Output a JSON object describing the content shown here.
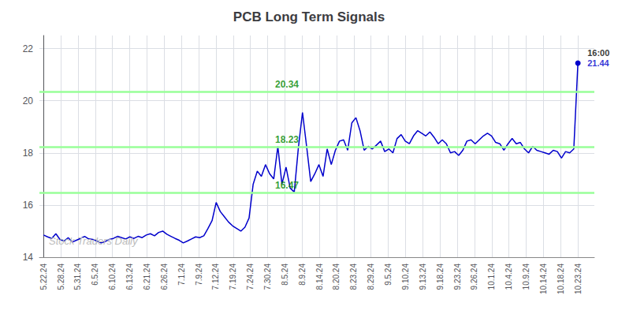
{
  "chart_data": {
    "type": "line",
    "title": "PCB Long Term Signals",
    "color": "#0000cc",
    "marker": "end",
    "grid": true,
    "values": [
      14.85,
      14.78,
      14.72,
      14.9,
      14.68,
      14.62,
      14.75,
      14.58,
      14.65,
      14.72,
      14.8,
      14.7,
      14.68,
      14.62,
      14.55,
      14.6,
      14.68,
      14.72,
      14.8,
      14.75,
      14.7,
      14.78,
      14.72,
      14.8,
      14.75,
      14.85,
      14.9,
      14.82,
      14.95,
      15.0,
      14.88,
      14.8,
      14.72,
      14.65,
      14.55,
      14.62,
      14.7,
      14.78,
      14.75,
      14.82,
      15.1,
      15.4,
      16.1,
      15.75,
      15.55,
      15.35,
      15.2,
      15.1,
      15.0,
      15.15,
      15.5,
      16.8,
      17.3,
      17.1,
      17.55,
      17.2,
      17.0,
      18.25,
      16.8,
      17.45,
      16.65,
      16.5,
      18.2,
      19.55,
      18.25,
      16.9,
      17.2,
      17.55,
      17.1,
      18.15,
      17.55,
      18.1,
      18.45,
      18.5,
      18.1,
      19.15,
      19.35,
      18.85,
      18.1,
      18.25,
      18.15,
      18.3,
      18.45,
      18.05,
      18.15,
      18.0,
      18.55,
      18.7,
      18.45,
      18.35,
      18.65,
      18.85,
      18.75,
      18.65,
      18.8,
      18.6,
      18.35,
      18.5,
      18.35,
      18.0,
      18.05,
      17.9,
      18.1,
      18.45,
      18.5,
      18.35,
      18.5,
      18.65,
      18.75,
      18.65,
      18.4,
      18.35,
      18.1,
      18.35,
      18.55,
      18.35,
      18.4,
      18.15,
      18.0,
      18.25,
      18.1,
      18.05,
      18.0,
      17.95,
      18.1,
      18.05,
      17.8,
      18.05,
      18.0,
      18.15,
      21.44
    ],
    "xlim": [
      -1,
      134
    ],
    "xticks": [
      {
        "value": 0,
        "label": "5.22.24"
      },
      {
        "value": 4.193548,
        "label": "5.28.24"
      },
      {
        "value": 8.387097,
        "label": "5.31.24"
      },
      {
        "value": 12.580645,
        "label": "6.5.24"
      },
      {
        "value": 16.774194,
        "label": "6.10.24"
      },
      {
        "value": 20.967742,
        "label": "6.13.24"
      },
      {
        "value": 25.16129,
        "label": "6.21.24"
      },
      {
        "value": 29.354839,
        "label": "6.26.24"
      },
      {
        "value": 33.548387,
        "label": "7.1.24"
      },
      {
        "value": 37.741935,
        "label": "7.9.24"
      },
      {
        "value": 41.935484,
        "label": "7.12.24"
      },
      {
        "value": 46.129032,
        "label": "7.19.24"
      },
      {
        "value": 50.322581,
        "label": "7.24.24"
      },
      {
        "value": 54.516129,
        "label": "7.30.24"
      },
      {
        "value": 58.709677,
        "label": "8.5.24"
      },
      {
        "value": 62.903226,
        "label": "8.9.24"
      },
      {
        "value": 67.096774,
        "label": "8.14.24"
      },
      {
        "value": 71.290323,
        "label": "8.20.24"
      },
      {
        "value": 75.483871,
        "label": "8.23.24"
      },
      {
        "value": 79.677419,
        "label": "8.29.24"
      },
      {
        "value": 83.870968,
        "label": "9.5.24"
      },
      {
        "value": 88.064516,
        "label": "9.10.24"
      },
      {
        "value": 92.258065,
        "label": "9.13.24"
      },
      {
        "value": 96.451613,
        "label": "9.18.24"
      },
      {
        "value": 100.645161,
        "label": "9.23.24"
      },
      {
        "value": 104.83871,
        "label": "9.26.24"
      },
      {
        "value": 109.032258,
        "label": "10.1.24"
      },
      {
        "value": 113.225806,
        "label": "10.4.24"
      },
      {
        "value": 117.419355,
        "label": "10.9.24"
      },
      {
        "value": 121.612903,
        "label": "10.14.24"
      },
      {
        "value": 125.806452,
        "label": "10.18.24"
      },
      {
        "value": 130,
        "label": "10.23.24"
      }
    ],
    "ylim": [
      14,
      22.5
    ],
    "yticks": [
      14,
      16,
      18,
      20,
      22
    ],
    "reference_lines": [
      {
        "y": 20.34,
        "label": "20.34",
        "color": "#99ff99",
        "label_color": "#008800"
      },
      {
        "y": 18.23,
        "label": "18.23",
        "color": "#99ff99",
        "label_color": "#008800"
      },
      {
        "y": 16.47,
        "label": "16.47",
        "color": "#99ff99",
        "label_color": "#008800"
      }
    ],
    "annotations": [
      {
        "text": "16:00",
        "x": 130,
        "y": 21.44,
        "color": "#000000"
      },
      {
        "text": "21.44",
        "x": 130,
        "y": 21.44,
        "color": "#0000cc"
      },
      {
        "text": "Stock Traders Daily",
        "color": "#bbbbbb"
      }
    ]
  }
}
